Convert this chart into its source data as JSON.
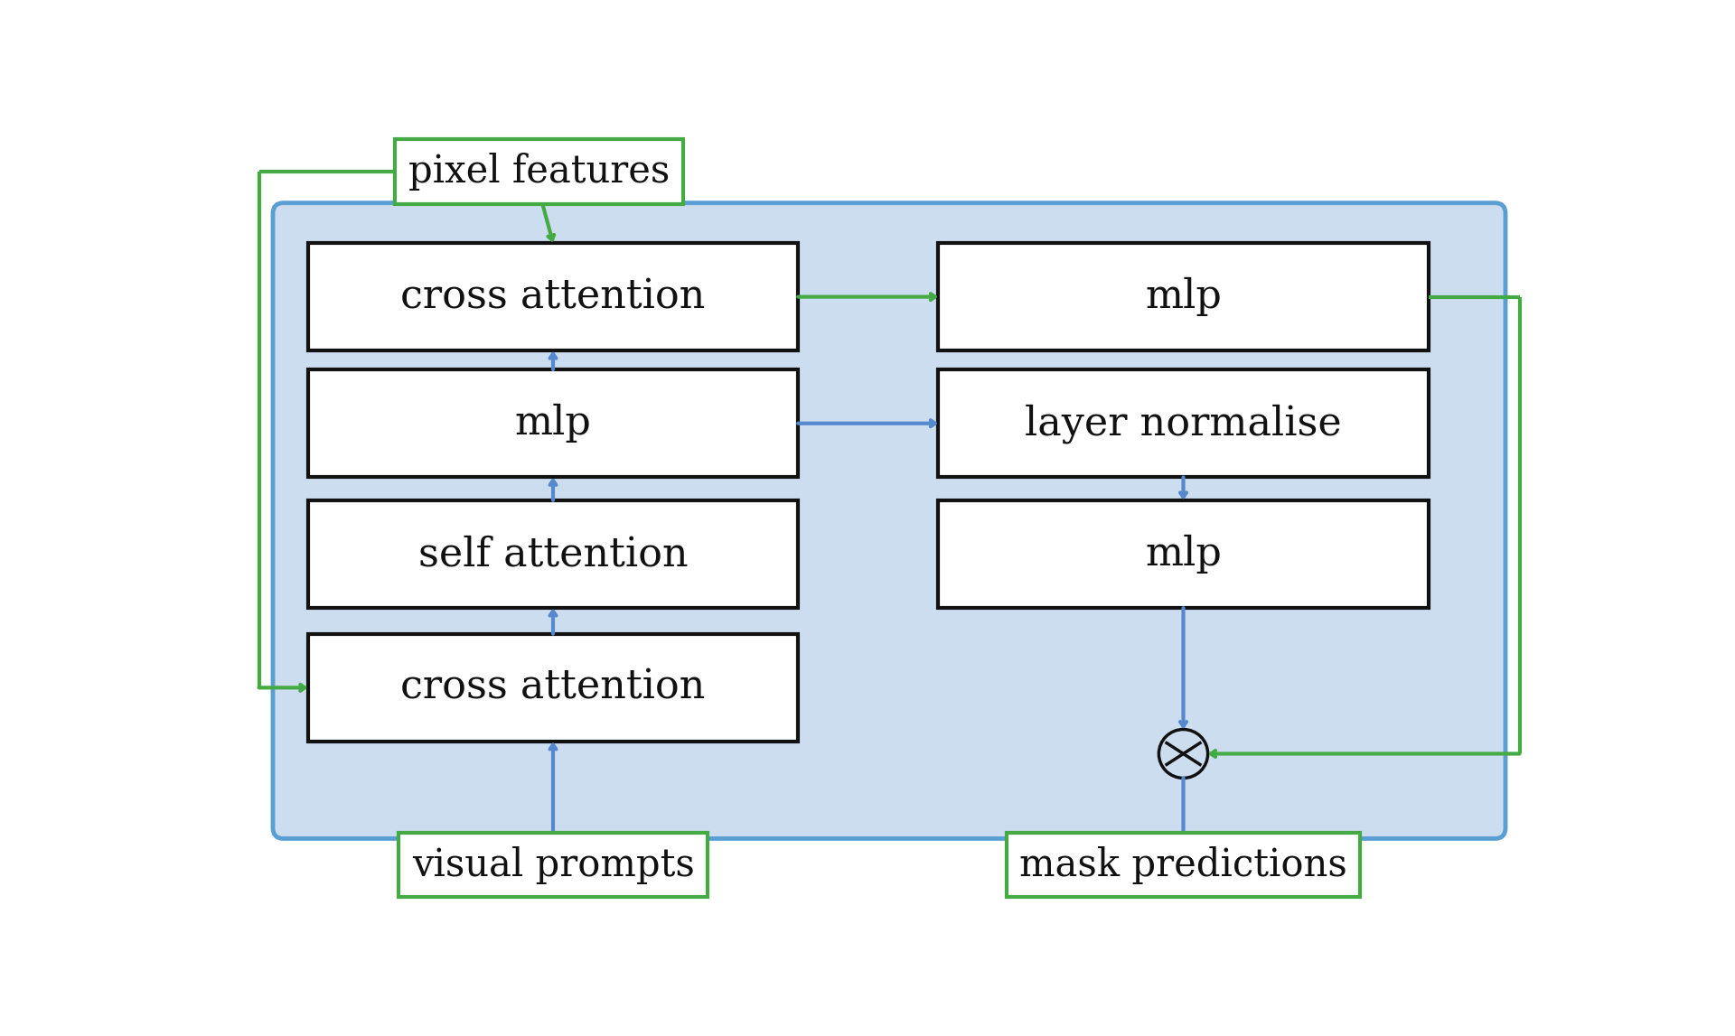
{
  "fig_width": 19.2,
  "fig_height": 11.47,
  "bg_color": "#ffffff",
  "panel_color": "#cdddf0",
  "panel_border_color": "#5a9fd4",
  "box_bg": "#ffffff",
  "box_border": "#111111",
  "blue_arrow": "#5588cc",
  "green_arrow": "#44aa44",
  "text_color": "#111111",
  "label_border": "#44aa44",
  "label_bg": "#ffffff",
  "left_boxes": [
    "cross attention",
    "mlp",
    "self attention",
    "cross attention"
  ],
  "right_boxes": [
    "mlp",
    "layer normalise",
    "mlp"
  ],
  "font_size_boxes": 32,
  "font_size_labels": 30,
  "pixel_features_label": "pixel features",
  "visual_prompts_label": "visual prompts",
  "mask_predictions_label": "mask predictions"
}
